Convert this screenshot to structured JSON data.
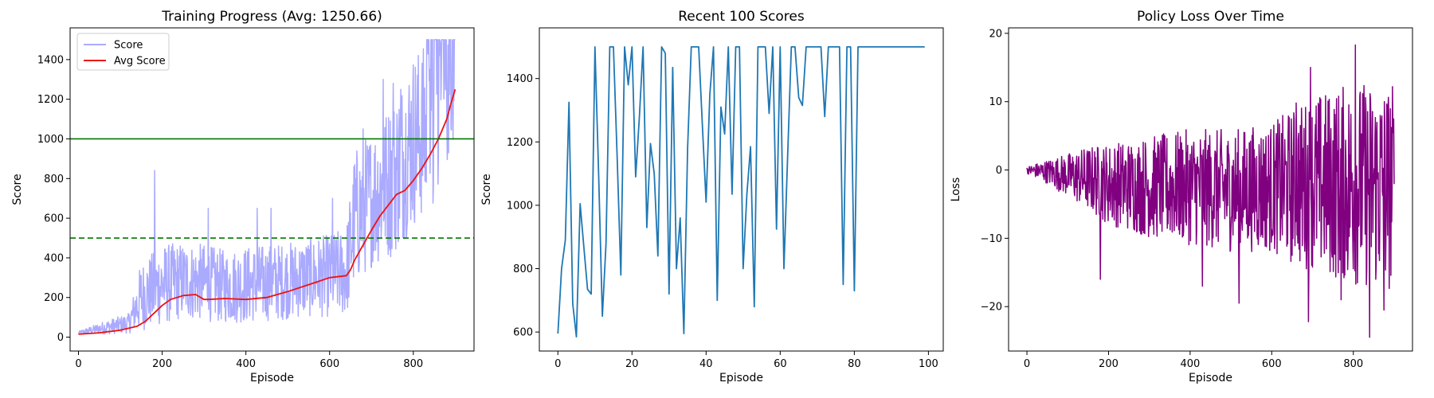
{
  "chart_data": [
    {
      "type": "line",
      "title": "Training Progress (Avg: 1250.66)",
      "xlabel": "Episode",
      "ylabel": "Score",
      "xlim": [
        -20,
        945
      ],
      "ylim": [
        -70,
        1560
      ],
      "xticks": [
        0,
        200,
        400,
        600,
        800
      ],
      "yticks": [
        0,
        200,
        400,
        600,
        800,
        1000,
        1200,
        1400
      ],
      "legend": "top-left",
      "series": [
        {
          "name": "Score",
          "color": "#aaaaff",
          "style": "noisy-band",
          "band_env": [
            [
              0,
              15,
              30
            ],
            [
              60,
              15,
              80
            ],
            [
              120,
              20,
              120
            ],
            [
              150,
              30,
              380
            ],
            [
              200,
              60,
              470
            ],
            [
              250,
              90,
              480
            ],
            [
              300,
              80,
              470
            ],
            [
              350,
              70,
              440
            ],
            [
              400,
              70,
              460
            ],
            [
              450,
              80,
              470
            ],
            [
              500,
              90,
              480
            ],
            [
              550,
              100,
              500
            ],
            [
              600,
              100,
              520
            ],
            [
              640,
              100,
              560
            ],
            [
              660,
              250,
              950
            ],
            [
              700,
              350,
              1050
            ],
            [
              750,
              400,
              1200
            ],
            [
              800,
              550,
              1450
            ],
            [
              850,
              650,
              1500
            ],
            [
              900,
              1000,
              1500
            ]
          ],
          "spikes": [
            [
              182,
              840
            ],
            [
              310,
              650
            ],
            [
              427,
              650
            ],
            [
              460,
              650
            ],
            [
              607,
              700
            ],
            [
              680,
              1050
            ],
            [
              728,
              1300
            ],
            [
              752,
              1280
            ],
            [
              770,
              1250
            ]
          ],
          "plateau": [
            [
              830,
              1500
            ],
            [
              900,
              1500
            ]
          ]
        },
        {
          "name": "Avg Score",
          "color": "#ee1111",
          "x": [
            0,
            50,
            100,
            140,
            160,
            180,
            200,
            220,
            250,
            280,
            300,
            310,
            350,
            400,
            450,
            500,
            550,
            600,
            640,
            650,
            660,
            700,
            720,
            760,
            780,
            800,
            820,
            840,
            860,
            880,
            890,
            900
          ],
          "values": [
            15,
            22,
            35,
            55,
            80,
            120,
            160,
            190,
            210,
            215,
            190,
            190,
            195,
            190,
            200,
            230,
            265,
            300,
            310,
            340,
            390,
            540,
            610,
            720,
            740,
            790,
            850,
            920,
            1000,
            1100,
            1180,
            1250
          ]
        }
      ],
      "hlines": [
        {
          "y": 1000,
          "color": "#007700",
          "dash": "solid"
        },
        {
          "y": 500,
          "color": "#007700",
          "dash": "dashed"
        }
      ]
    },
    {
      "type": "line",
      "title": "Recent 100 Scores",
      "xlabel": "Episode",
      "ylabel": "Score",
      "xlim": [
        -5,
        104
      ],
      "ylim": [
        540,
        1560
      ],
      "xticks": [
        0,
        20,
        40,
        60,
        80,
        100
      ],
      "yticks": [
        600,
        800,
        1000,
        1200,
        1400
      ],
      "series": [
        {
          "color": "#1f77b4",
          "x": [
            0,
            1,
            2,
            3,
            4,
            5,
            6,
            7,
            8,
            9,
            10,
            11,
            12,
            13,
            14,
            15,
            16,
            17,
            18,
            19,
            20,
            21,
            22,
            23,
            24,
            25,
            26,
            27,
            28,
            29,
            30,
            31,
            32,
            33,
            34,
            35,
            36,
            37,
            38,
            39,
            40,
            41,
            42,
            43,
            44,
            45,
            46,
            47,
            48,
            49,
            50,
            51,
            52,
            53,
            54,
            55,
            56,
            57,
            58,
            59,
            60,
            61,
            62,
            63,
            64,
            65,
            66,
            67,
            68,
            69,
            70,
            71,
            72,
            73,
            74,
            75,
            76,
            77,
            78,
            79,
            80,
            81,
            82,
            83,
            84,
            85,
            86,
            87,
            88,
            89,
            90,
            91,
            92,
            93,
            94,
            95,
            96,
            97,
            98,
            99
          ],
          "values": [
            595,
            800,
            890,
            1325,
            690,
            585,
            1005,
            870,
            735,
            720,
            1500,
            1100,
            650,
            880,
            1500,
            1500,
            1150,
            780,
            1500,
            1380,
            1500,
            1090,
            1280,
            1500,
            930,
            1195,
            1100,
            840,
            1500,
            1480,
            720,
            1435,
            800,
            960,
            595,
            1180,
            1500,
            1500,
            1500,
            1250,
            1010,
            1350,
            1500,
            700,
            1310,
            1225,
            1500,
            1035,
            1500,
            1500,
            800,
            1035,
            1185,
            680,
            1500,
            1500,
            1500,
            1290,
            1500,
            925,
            1500,
            800,
            1150,
            1500,
            1500,
            1340,
            1315,
            1500,
            1500,
            1500,
            1500,
            1500,
            1280,
            1500,
            1500,
            1500,
            1500,
            750,
            1500,
            1500,
            730,
            1500,
            1500,
            1500,
            1500,
            1500,
            1500,
            1500,
            1500,
            1500,
            1500,
            1500,
            1500,
            1500,
            1500,
            1500,
            1500,
            1500,
            1500,
            1500
          ]
        }
      ]
    },
    {
      "type": "line",
      "title": "Policy Loss Over Time",
      "xlabel": "Episode",
      "ylabel": "Loss",
      "xlim": [
        -45,
        945
      ],
      "ylim": [
        -26.5,
        20.8
      ],
      "xticks": [
        0,
        200,
        400,
        600,
        800
      ],
      "yticks": [
        -20,
        -10,
        0,
        10,
        20
      ],
      "series": [
        {
          "color": "#800080",
          "style": "noisy-band",
          "band_env": [
            [
              0,
              -0.5,
              0.5
            ],
            [
              50,
              -2,
              1.5
            ],
            [
              100,
              -4,
              2.5
            ],
            [
              150,
              -6,
              3.5
            ],
            [
              200,
              -8,
              4
            ],
            [
              300,
              -10,
              5
            ],
            [
              400,
              -11,
              6
            ],
            [
              500,
              -12,
              6
            ],
            [
              600,
              -12,
              7
            ],
            [
              650,
              -14,
              9
            ],
            [
              700,
              -15,
              11
            ],
            [
              800,
              -17,
              13
            ],
            [
              900,
              -18,
              13
            ]
          ],
          "spikes": [
            [
              180,
              -16
            ],
            [
              430,
              -17
            ],
            [
              520,
              -19.5
            ],
            [
              690,
              -22.2
            ],
            [
              770,
              -19
            ],
            [
              805,
              18.3
            ],
            [
              840,
              -24.5
            ],
            [
              875,
              -20.5
            ],
            [
              660,
              9.8
            ],
            [
              695,
              15
            ]
          ]
        }
      ]
    }
  ]
}
